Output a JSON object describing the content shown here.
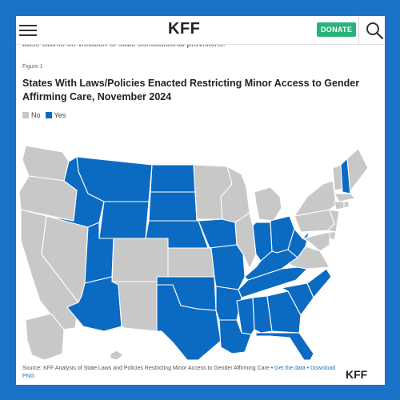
{
  "header": {
    "logo": "KFF",
    "donate_label": "DONATE",
    "menu_icon": "hamburger-icon",
    "search_icon": "search-icon"
  },
  "clipped_text": "base claims on violation of state constitutional provisions.",
  "figure": {
    "label": "Figure 1",
    "title": "States With Laws/Policies Enacted Restricting Minor Access to Gender Affirming Care, November 2024"
  },
  "legend": [
    {
      "label": "No",
      "color": "#c8c8c8"
    },
    {
      "label": "Yes",
      "color": "#0b6bc2"
    }
  ],
  "map_data": {
    "colors": {
      "yes": "#0b6bc2",
      "no": "#c8c8c8",
      "border": "#ffffff"
    },
    "states": {
      "WA": "No",
      "OR": "No",
      "CA": "No",
      "NV": "No",
      "ID": "Yes",
      "MT": "Yes",
      "WY": "Yes",
      "UT": "Yes",
      "AZ": "Yes",
      "CO": "No",
      "NM": "No",
      "ND": "Yes",
      "SD": "Yes",
      "NE": "Yes",
      "KS": "No",
      "OK": "Yes",
      "TX": "Yes",
      "MN": "No",
      "IA": "Yes",
      "MO": "Yes",
      "AR": "Yes",
      "LA": "Yes",
      "WI": "No",
      "IL": "No",
      "MI": "No",
      "IN": "Yes",
      "OH": "Yes",
      "KY": "Yes",
      "TN": "Yes",
      "MS": "Yes",
      "AL": "Yes",
      "GA": "Yes",
      "FL": "Yes",
      "SC": "Yes",
      "NC": "Yes",
      "VA": "No",
      "WV": "Yes",
      "PA": "No",
      "NY": "No",
      "VT": "No",
      "NH": "Yes",
      "ME": "No",
      "MA": "No",
      "CT": "No",
      "RI": "No",
      "NJ": "No",
      "DE": "No",
      "MD": "No",
      "AK": "No",
      "HI": "No"
    }
  },
  "footer": {
    "source_prefix": "Source: KFF Analysis of State Laws and Policies Restricting Minor Access to Gender Affirming Care • ",
    "get_data": "Get the data",
    "separator": " • ",
    "download": "Download PNG",
    "logo": "KFF"
  }
}
